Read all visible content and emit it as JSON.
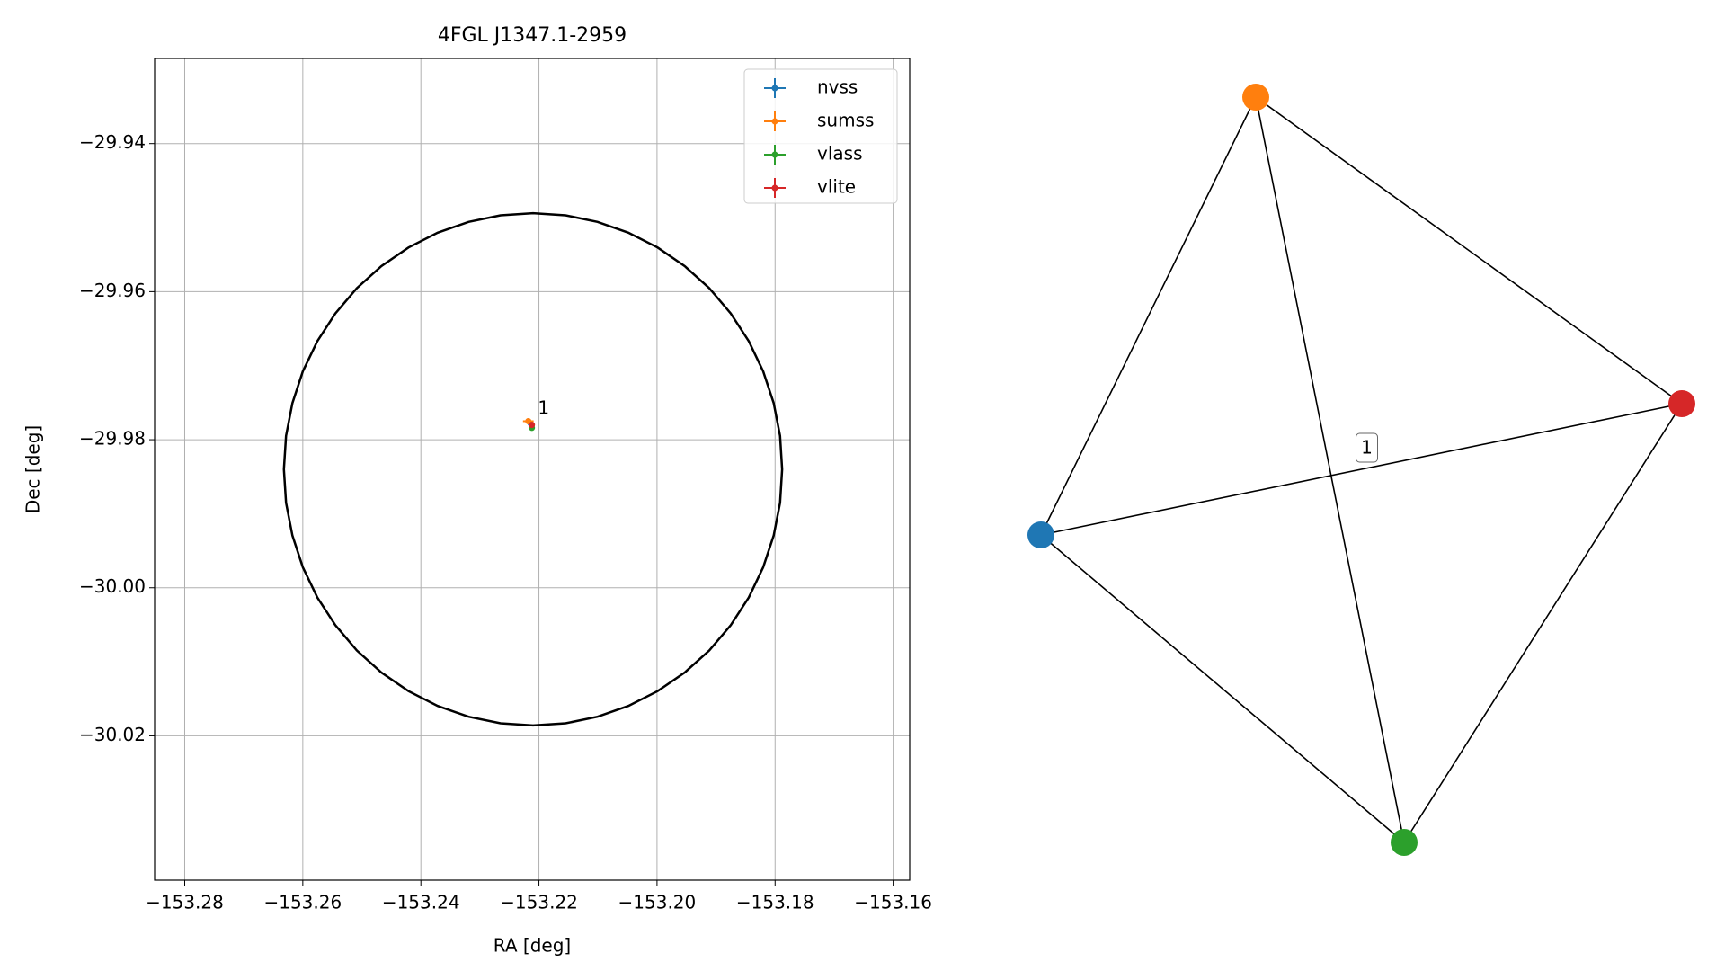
{
  "chart_data": {
    "type": "scatter",
    "title": "4FGL J1347.1-2959",
    "x_label": "RA [deg]",
    "y_label": "Dec [deg]",
    "xlim": [
      -153.2851,
      -153.1572
    ],
    "ylim": [
      -30.0395,
      -29.9285
    ],
    "xticks": [
      {
        "value": -153.28,
        "label": "−153.28"
      },
      {
        "value": -153.26,
        "label": "−153.26"
      },
      {
        "value": -153.24,
        "label": "−153.24"
      },
      {
        "value": -153.22,
        "label": "−153.22"
      },
      {
        "value": -153.2,
        "label": "−153.20"
      },
      {
        "value": -153.18,
        "label": "−153.18"
      },
      {
        "value": -153.16,
        "label": "−153.16"
      }
    ],
    "yticks": [
      {
        "value": -29.94,
        "label": "−29.94"
      },
      {
        "value": -29.96,
        "label": "−29.96"
      },
      {
        "value": -29.98,
        "label": "−29.98"
      },
      {
        "value": -30.0,
        "label": "−30.00"
      },
      {
        "value": -30.02,
        "label": "−30.02"
      }
    ],
    "grid": true,
    "legend": "upper right",
    "series": [
      {
        "name": "nvss",
        "color": "#1f77b4",
        "x": [
          -153.2214
        ],
        "y": [
          -29.9778
        ],
        "xerr": [
          0.0004
        ],
        "yerr": [
          0.0004
        ]
      },
      {
        "name": "sumss",
        "color": "#ff7f0e",
        "x": [
          -153.2218
        ],
        "y": [
          -29.9775
        ],
        "xerr": [
          0.0009
        ],
        "yerr": [
          0.0004
        ]
      },
      {
        "name": "vlass",
        "color": "#2ca02c",
        "x": [
          -153.2212
        ],
        "y": [
          -29.9784
        ],
        "xerr": [
          0.0002
        ],
        "yerr": [
          0.0002
        ]
      },
      {
        "name": "vlite",
        "color": "#d62728",
        "x": [
          -153.2212
        ],
        "y": [
          -29.978
        ],
        "xerr": [
          0.0003
        ],
        "yerr": [
          0.0003
        ]
      }
    ],
    "annotation": "1",
    "region": {
      "ra": -153.221,
      "dec": -29.984,
      "ra_radius": 0.0422,
      "dec_radius": 0.0346,
      "color": "#000000"
    }
  },
  "graph": {
    "nodes": [
      {
        "color": "#1f77b4"
      },
      {
        "color": "#ff7f0e"
      },
      {
        "color": "#2ca02c"
      },
      {
        "color": "#d62728"
      }
    ],
    "edge_label": "1"
  }
}
